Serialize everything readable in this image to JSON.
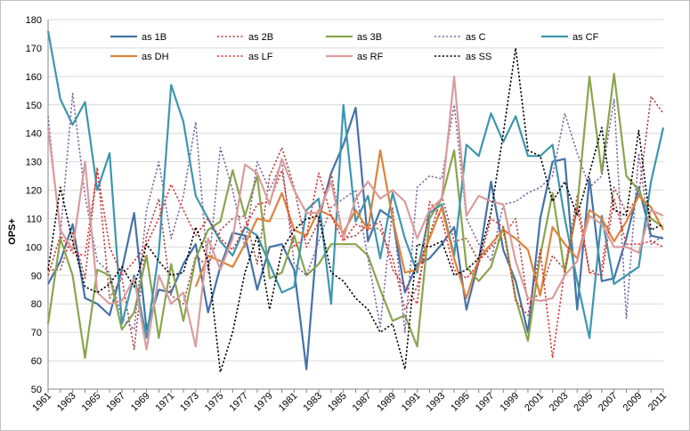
{
  "chart_data": {
    "type": "line",
    "title": "",
    "xlabel": "",
    "ylabel": "OPS+",
    "ylim": [
      50,
      180
    ],
    "yticks": [
      50,
      60,
      70,
      80,
      90,
      100,
      110,
      120,
      130,
      140,
      150,
      160,
      170,
      180
    ],
    "grid": true,
    "legend_position": "top",
    "x_tick_labels": [
      "1961",
      "1963",
      "1965",
      "1967",
      "1969",
      "1971",
      "1973",
      "1975",
      "1977",
      "1979",
      "1981",
      "1983",
      "1985",
      "1987",
      "1989",
      "1991",
      "1993",
      "1995",
      "1997",
      "1999",
      "2001",
      "2003",
      "2005",
      "2007",
      "2009",
      "2011"
    ],
    "x": [
      1961,
      1962,
      1963,
      1964,
      1965,
      1966,
      1967,
      1968,
      1969,
      1970,
      1971,
      1972,
      1973,
      1974,
      1975,
      1976,
      1977,
      1978,
      1979,
      1980,
      1981,
      1982,
      1983,
      1984,
      1985,
      1986,
      1987,
      1988,
      1989,
      1990,
      1991,
      1992,
      1993,
      1994,
      1995,
      1996,
      1997,
      1998,
      1999,
      2000,
      2001,
      2002,
      2003,
      2004,
      2005,
      2006,
      2007,
      2008,
      2009,
      2010,
      2011
    ],
    "series": [
      {
        "name": "as 1B",
        "color": "#4572a7",
        "dash": "solid",
        "values": [
          87,
          95,
          108,
          82,
          80,
          76,
          92,
          112,
          71,
          85,
          84,
          94,
          101,
          77,
          93,
          105,
          104,
          85,
          100,
          101,
          92,
          57,
          110,
          126,
          136,
          149,
          102,
          113,
          110,
          84,
          94,
          96,
          101,
          107,
          78,
          95,
          123,
          99,
          88,
          70,
          110,
          130,
          131,
          78,
          124,
          88,
          89,
          103,
          121,
          104,
          103
        ]
      },
      {
        "name": "as 2B",
        "color": "#aa4643",
        "dash": "dot",
        "values": [
          92,
          92,
          105,
          89,
          128,
          82,
          89,
          64,
          104,
          117,
          83,
          80,
          97,
          93,
          106,
          110,
          111,
          94,
          125,
          135,
          121,
          100,
          109,
          126,
          103,
          104,
          108,
          106,
          96,
          78,
          86,
          104,
          118,
          102,
          103,
          95,
          100,
          104,
          110,
          80,
          84,
          97,
          92,
          118,
          91,
          93,
          121,
          112,
          118,
          153,
          147
        ]
      },
      {
        "name": "as 3B",
        "color": "#89a54e",
        "dash": "solid",
        "values": [
          73,
          103,
          90,
          61,
          92,
          90,
          71,
          77,
          97,
          68,
          94,
          74,
          96,
          106,
          109,
          127,
          111,
          125,
          89,
          91,
          104,
          90,
          94,
          101,
          101,
          101,
          97,
          85,
          74,
          76,
          65,
          110,
          117,
          134,
          93,
          88,
          93,
          107,
          82,
          67,
          97,
          119,
          91,
          114,
          160,
          126,
          161,
          125,
          120,
          110,
          107
        ]
      },
      {
        "name": "as C",
        "color": "#80699b",
        "dash": "dot",
        "values": [
          146,
          104,
          154,
          118,
          95,
          91,
          75,
          71,
          113,
          130,
          103,
          118,
          144,
          91,
          135,
          120,
          100,
          130,
          120,
          130,
          94,
          90,
          102,
          114,
          117,
          120,
          96,
          72,
          114,
          70,
          121,
          125,
          124,
          150,
          110,
          101,
          95,
          115,
          116,
          119,
          121,
          125,
          147,
          133,
          121,
          125,
          152,
          75,
          133,
          101,
          104
        ]
      },
      {
        "name": "as CF",
        "color": "#3d96ae",
        "dash": "solid",
        "values": [
          176,
          152,
          143,
          151,
          120,
          133,
          73,
          90,
          68,
          98,
          157,
          144,
          118,
          110,
          102,
          97,
          107,
          104,
          94,
          84,
          86,
          113,
          117,
          80,
          150,
          109,
          118,
          96,
          119,
          103,
          91,
          112,
          115,
          97,
          136,
          132,
          147,
          137,
          146,
          132,
          132,
          136,
          110,
          88,
          68,
          111,
          87,
          90,
          93,
          123,
          142
        ]
      },
      {
        "name": "as DH",
        "color": "#db843d",
        "dash": "solid",
        "values": [
          null,
          null,
          null,
          null,
          null,
          null,
          null,
          null,
          null,
          null,
          null,
          null,
          86,
          97,
          95,
          93,
          101,
          110,
          109,
          119,
          106,
          104,
          113,
          111,
          105,
          113,
          106,
          134,
          110,
          91,
          92,
          103,
          114,
          96,
          82,
          96,
          101,
          106,
          103,
          99,
          83,
          107,
          101,
          96,
          113,
          110,
          102,
          109,
          118,
          114,
          106
        ]
      },
      {
        "name": "as LF",
        "color": "#e03030",
        "dash": "dot",
        "values": [
          90,
          104,
          98,
          97,
          127,
          100,
          90,
          95,
          101,
          110,
          122,
          113,
          104,
          110,
          103,
          99,
          107,
          115,
          116,
          127,
          100,
          104,
          126,
          111,
          102,
          108,
          106,
          109,
          92,
          86,
          80,
          116,
          110,
          92,
          89,
          94,
          110,
          107,
          81,
          76,
          99,
          61,
          92,
          114,
          91,
          90,
          117,
          101,
          101,
          102,
          100
        ]
      },
      {
        "name": "as RF",
        "color": "#d99c9c",
        "dash": "solid",
        "values": [
          142,
          106,
          99,
          130,
          84,
          80,
          81,
          89,
          64,
          90,
          80,
          84,
          65,
          103,
          92,
          103,
          129,
          126,
          115,
          131,
          120,
          112,
          112,
          123,
          103,
          117,
          123,
          117,
          120,
          116,
          103,
          113,
          117,
          160,
          111,
          118,
          116,
          115,
          95,
          82,
          81,
          82,
          90,
          95,
          111,
          108,
          100,
          100,
          98,
          113,
          111
        ]
      },
      {
        "name": "as SS",
        "color": "#000000",
        "dash": "dot",
        "values": [
          92,
          121,
          102,
          86,
          84,
          87,
          93,
          86,
          101,
          95,
          90,
          91,
          107,
          95,
          56,
          70,
          91,
          104,
          78,
          99,
          106,
          110,
          111,
          91,
          88,
          82,
          78,
          70,
          73,
          57,
          101,
          100,
          102,
          90,
          92,
          96,
          112,
          140,
          170,
          134,
          132,
          116,
          123,
          111,
          126,
          142,
          113,
          111,
          141,
          106,
          108
        ]
      }
    ]
  }
}
